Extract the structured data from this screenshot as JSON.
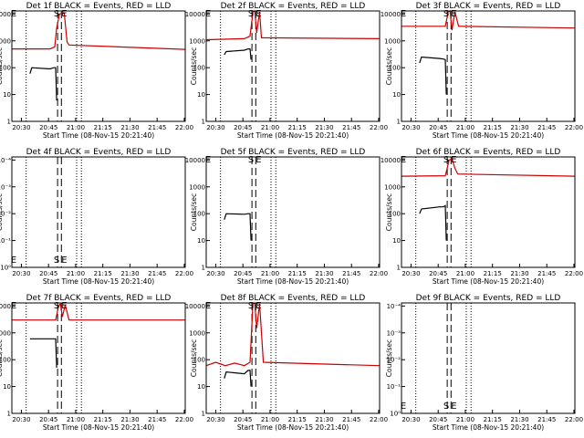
{
  "chart_data": [
    {
      "type": "line",
      "title": "Det 1f BLACK = Events, RED = LLD",
      "xlabel": "Start Time (08-Nov-15 20:21:40)",
      "ylabel": "Counts/sec",
      "yscale": "log",
      "ylim": [
        1,
        13000
      ],
      "xlim_min": [
        20,
        202
      ],
      "x_ticks": [
        "20:30",
        "20:45",
        "21:00",
        "21:15",
        "21:30",
        "21:45",
        "22:00"
      ],
      "y_ticks": [
        "1",
        "10",
        "100",
        "1000",
        "10000"
      ],
      "dotted_x": [
        35,
        88,
        93
      ],
      "dashed_x": [
        68,
        72
      ],
      "markers": [
        {
          "label": "S",
          "x": 67,
          "y": 11000
        },
        {
          "label": "E",
          "x": 75,
          "y": 11000
        },
        {
          "label": "E",
          "x": 22,
          "y": 11000
        }
      ],
      "series": [
        {
          "color": "#cc0000",
          "x": [
            20,
            60,
            65,
            67,
            70,
            75,
            78,
            80,
            202
          ],
          "y": [
            500,
            500,
            600,
            3000,
            10000,
            11000,
            900,
            700,
            480
          ]
        },
        {
          "color": "#000000",
          "x": [
            39,
            41,
            60,
            64,
            66,
            67
          ],
          "y": [
            60,
            100,
            90,
            100,
            100,
            6
          ]
        }
      ]
    },
    {
      "type": "line",
      "title": "Det 2f BLACK = Events, RED = LLD",
      "xlabel": "Start Time (08-Nov-15 20:21:40)",
      "ylabel": "Counts/sec",
      "yscale": "log",
      "ylim": [
        1,
        13000
      ],
      "xlim_min": [
        20,
        202
      ],
      "x_ticks": [
        "20:30",
        "20:45",
        "21:00",
        "21:15",
        "21:30",
        "21:45",
        "22:00"
      ],
      "y_ticks": [
        "1",
        "10",
        "100",
        "1000",
        "10000"
      ],
      "dotted_x": [
        35,
        88,
        93
      ],
      "dashed_x": [
        68,
        72
      ],
      "markers": [
        {
          "label": "S",
          "x": 67,
          "y": 11000
        },
        {
          "label": "E",
          "x": 75,
          "y": 11000
        },
        {
          "label": "E",
          "x": 22,
          "y": 11000
        }
      ],
      "series": [
        {
          "color": "#cc0000",
          "x": [
            20,
            60,
            66,
            69,
            71,
            73,
            76,
            78,
            202
          ],
          "y": [
            1100,
            1200,
            1500,
            12000,
            13000,
            2000,
            12000,
            1300,
            1200
          ]
        },
        {
          "color": "#000000",
          "x": [
            39,
            41,
            60,
            64,
            66,
            67
          ],
          "y": [
            300,
            400,
            450,
            500,
            500,
            200
          ]
        }
      ]
    },
    {
      "type": "line",
      "title": "Det 3f BLACK = Events, RED = LLD",
      "xlabel": "Start Time (08-Nov-15 20:21:40)",
      "ylabel": "Counts/sec",
      "yscale": "log",
      "ylim": [
        1,
        13000
      ],
      "xlim_min": [
        20,
        202
      ],
      "x_ticks": [
        "20:30",
        "20:45",
        "21:00",
        "21:15",
        "21:30",
        "21:45",
        "22:00"
      ],
      "y_ticks": [
        "1",
        "10",
        "100",
        "1000",
        "10000"
      ],
      "dotted_x": [
        35,
        88,
        93
      ],
      "dashed_x": [
        68,
        72
      ],
      "markers": [
        {
          "label": "S",
          "x": 67,
          "y": 11000
        },
        {
          "label": "E",
          "x": 75,
          "y": 11000
        },
        {
          "label": "E",
          "x": 22,
          "y": 11000
        }
      ],
      "series": [
        {
          "color": "#cc0000",
          "x": [
            20,
            66,
            69,
            71,
            73,
            76,
            80,
            202
          ],
          "y": [
            3500,
            3500,
            12000,
            13000,
            2500,
            12000,
            3500,
            3000
          ]
        },
        {
          "color": "#000000",
          "x": [
            39,
            41,
            60,
            64,
            66,
            67
          ],
          "y": [
            150,
            250,
            220,
            210,
            200,
            10
          ]
        }
      ]
    },
    {
      "type": "line",
      "title": "Det 4f BLACK = Events, RED = LLD",
      "xlabel": "Start Time (08-Nov-15 20:21:40)",
      "ylabel": "Counts/sec",
      "yscale": "log",
      "ylim": [
        1,
        13000
      ],
      "xlim_min": [
        20,
        202
      ],
      "x_ticks": [
        "20:30",
        "20:45",
        "21:00",
        "21:15",
        "21:30",
        "21:45",
        "22:00"
      ],
      "y_ticks": [
        "10⁰",
        "10⁻¹",
        "10⁻²",
        "10⁻³",
        "10⁻⁴"
      ],
      "dotted_x": [
        35,
        88,
        93
      ],
      "dashed_x": [
        68,
        72
      ],
      "markers": [
        {
          "label": "S",
          "x": 67,
          "y": 2
        },
        {
          "label": "E",
          "x": 75,
          "y": 2
        },
        {
          "label": "E",
          "x": 22,
          "y": 2
        }
      ],
      "series": []
    },
    {
      "type": "line",
      "title": "Det 5f BLACK = Events, RED = LLD",
      "xlabel": "Start Time (08-Nov-15 20:21:40)",
      "ylabel": "Counts/sec",
      "yscale": "log",
      "ylim": [
        1,
        13000
      ],
      "xlim_min": [
        20,
        202
      ],
      "x_ticks": [
        "20:30",
        "20:45",
        "21:00",
        "21:15",
        "21:30",
        "21:45",
        "22:00"
      ],
      "y_ticks": [
        "1",
        "10",
        "100",
        "1000",
        "10000"
      ],
      "dotted_x": [
        35,
        88,
        93
      ],
      "dashed_x": [
        68,
        72
      ],
      "markers": [
        {
          "label": "S",
          "x": 67,
          "y": 11000
        },
        {
          "label": "E",
          "x": 75,
          "y": 11000
        },
        {
          "label": "E",
          "x": 22,
          "y": 11000
        }
      ],
      "series": [
        {
          "color": "#000000",
          "x": [
            39,
            41,
            60,
            64,
            66,
            67
          ],
          "y": [
            60,
            100,
            95,
            100,
            100,
            10
          ]
        }
      ]
    },
    {
      "type": "line",
      "title": "Det 6f BLACK = Events, RED = LLD",
      "xlabel": "Start Time (08-Nov-15 20:21:40)",
      "ylabel": "Counts/sec",
      "yscale": "log",
      "ylim": [
        1,
        13000
      ],
      "xlim_min": [
        20,
        202
      ],
      "x_ticks": [
        "20:30",
        "20:45",
        "21:00",
        "21:15",
        "21:30",
        "21:45",
        "22:00"
      ],
      "y_ticks": [
        "1",
        "10",
        "100",
        "1000",
        "10000"
      ],
      "dotted_x": [
        35,
        88,
        93
      ],
      "dashed_x": [
        68,
        72
      ],
      "markers": [
        {
          "label": "S",
          "x": 67,
          "y": 11000
        },
        {
          "label": "E",
          "x": 75,
          "y": 11000
        },
        {
          "label": "E",
          "x": 22,
          "y": 11000
        }
      ],
      "series": [
        {
          "color": "#cc0000",
          "x": [
            20,
            66,
            68,
            70,
            73,
            76,
            79,
            202
          ],
          "y": [
            2500,
            2600,
            5000,
            10000,
            11000,
            5000,
            3000,
            2500
          ]
        },
        {
          "color": "#000000",
          "x": [
            39,
            41,
            60,
            64,
            66,
            67
          ],
          "y": [
            100,
            150,
            180,
            180,
            200,
            10
          ]
        }
      ]
    },
    {
      "type": "line",
      "title": "Det 7f BLACK = Events, RED = LLD",
      "xlabel": "Start Time (08-Nov-15 20:21:40)",
      "ylabel": "Counts/sec",
      "yscale": "log",
      "ylim": [
        1,
        13000
      ],
      "xlim_min": [
        20,
        202
      ],
      "x_ticks": [
        "20:30",
        "20:45",
        "21:00",
        "21:15",
        "21:30",
        "21:45",
        "22:00"
      ],
      "y_ticks": [
        "1",
        "10",
        "100",
        "1000",
        "10000"
      ],
      "dotted_x": [
        35,
        88,
        93
      ],
      "dashed_x": [
        68,
        72
      ],
      "markers": [
        {
          "label": "S",
          "x": 67,
          "y": 11000
        },
        {
          "label": "E",
          "x": 75,
          "y": 11000
        },
        {
          "label": "E",
          "x": 22,
          "y": 11000
        }
      ],
      "series": [
        {
          "color": "#cc0000",
          "x": [
            20,
            66,
            69,
            71,
            73,
            76,
            80,
            202
          ],
          "y": [
            3000,
            3000,
            10000,
            12000,
            4000,
            11000,
            3000,
            3000
          ]
        },
        {
          "color": "#000000",
          "x": [
            39,
            41,
            60,
            64,
            66,
            67
          ],
          "y": [
            600,
            600,
            600,
            600,
            600,
            50
          ]
        }
      ]
    },
    {
      "type": "line",
      "title": "Det 8f BLACK = Events, RED = LLD",
      "xlabel": "Start Time (08-Nov-15 20:21:40)",
      "ylabel": "Counts/sec",
      "yscale": "log",
      "ylim": [
        1,
        13000
      ],
      "xlim_min": [
        20,
        202
      ],
      "x_ticks": [
        "20:30",
        "20:45",
        "21:00",
        "21:15",
        "21:30",
        "21:45",
        "22:00"
      ],
      "y_ticks": [
        "1",
        "10",
        "100",
        "1000",
        "10000"
      ],
      "dotted_x": [
        35,
        88,
        93
      ],
      "dashed_x": [
        68,
        72
      ],
      "markers": [
        {
          "label": "S",
          "x": 67,
          "y": 11000
        },
        {
          "label": "E",
          "x": 75,
          "y": 11000
        },
        {
          "label": "E",
          "x": 22,
          "y": 11000
        }
      ],
      "series": [
        {
          "color": "#cc0000",
          "x": [
            20,
            30,
            40,
            50,
            60,
            66,
            69,
            71,
            73,
            76,
            80,
            202
          ],
          "y": [
            60,
            80,
            60,
            75,
            60,
            80,
            13000,
            12000,
            1500,
            12000,
            80,
            60
          ]
        },
        {
          "color": "#000000",
          "x": [
            39,
            41,
            60,
            64,
            66,
            67
          ],
          "y": [
            20,
            35,
            30,
            40,
            40,
            10
          ]
        }
      ]
    },
    {
      "type": "line",
      "title": "Det 9f BLACK = Events, RED = LLD",
      "xlabel": "Start Time (08-Nov-15 20:21:40)",
      "ylabel": "Counts/sec",
      "yscale": "log",
      "ylim": [
        1,
        13000
      ],
      "xlim_min": [
        20,
        202
      ],
      "x_ticks": [
        "20:30",
        "20:45",
        "21:00",
        "21:15",
        "21:30",
        "21:45",
        "22:00"
      ],
      "y_ticks": [
        "10⁰",
        "10⁻¹",
        "10⁻²",
        "10⁻³",
        "10⁻⁴"
      ],
      "dotted_x": [
        35,
        88,
        93
      ],
      "dashed_x": [
        68,
        72
      ],
      "markers": [
        {
          "label": "S",
          "x": 67,
          "y": 2
        },
        {
          "label": "E",
          "x": 75,
          "y": 2
        },
        {
          "label": "E",
          "x": 22,
          "y": 2
        }
      ],
      "series": []
    }
  ]
}
